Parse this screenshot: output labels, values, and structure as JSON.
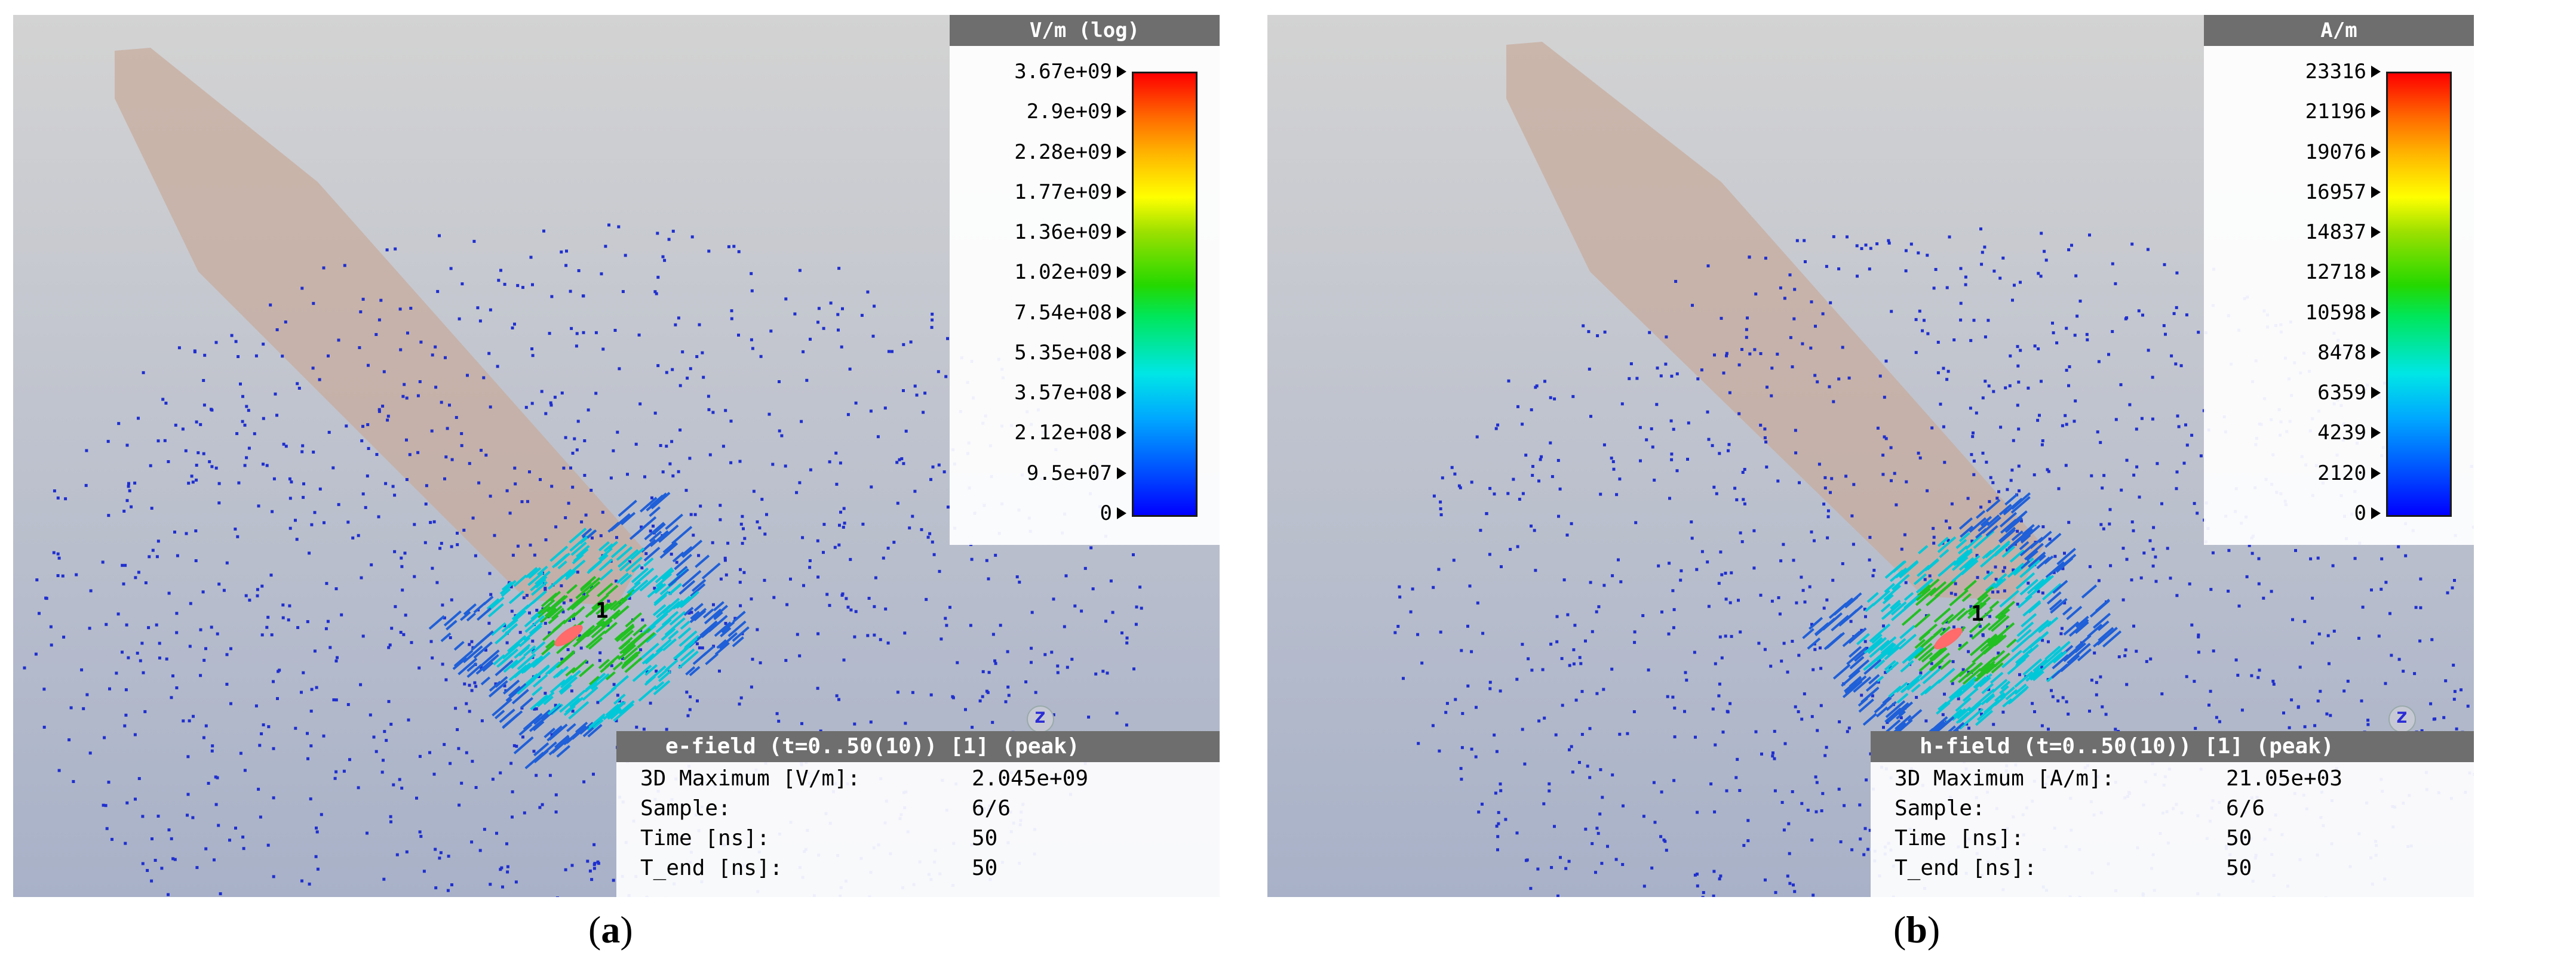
{
  "panels": [
    {
      "id": "a",
      "legend_title": "V/m (log)",
      "ticks": [
        "3.67e+09",
        "2.9e+09",
        "2.28e+09",
        "1.77e+09",
        "1.36e+09",
        "1.02e+09",
        "7.54e+08",
        "5.35e+08",
        "3.57e+08",
        "2.12e+08",
        "9.5e+07",
        "0"
      ],
      "info_header": "e-field (t=0..50(10)) [1] (peak)",
      "info_rows": [
        {
          "label": "3D Maximum [V/m]:",
          "value": "2.045e+09"
        },
        {
          "label": "Sample:",
          "value": "6/6"
        },
        {
          "label": "Time [ns]:",
          "value": "50"
        },
        {
          "label": "T_end [ns]:",
          "value": "50"
        }
      ],
      "axis_label": "z",
      "port_label": "1",
      "caption_letter": "a"
    },
    {
      "id": "b",
      "legend_title": "A/m",
      "ticks": [
        "23316",
        "21196",
        "19076",
        "16957",
        "14837",
        "12718",
        "10598",
        "8478",
        "6359",
        "4239",
        "2120",
        "0"
      ],
      "info_header": "h-field (t=0..50(10)) [1] (peak)",
      "info_rows": [
        {
          "label": "3D Maximum [A/m]:",
          "value": "21.05e+03"
        },
        {
          "label": "Sample:",
          "value": "6/6"
        },
        {
          "label": "Time [ns]:",
          "value": "50"
        },
        {
          "label": "T_end [ns]:",
          "value": "50"
        }
      ],
      "axis_label": "z",
      "port_label": "1",
      "caption_letter": "b"
    }
  ],
  "colors": {
    "background_top": "#d2d2d2",
    "background_bottom": "#a9b2c8",
    "probe_body": "#c8aa9a",
    "field_arrow_low": "#1f2fcf",
    "field_arrow_mid": "#00c8d8",
    "field_arrow_high": "#22c022",
    "legend_header": "#6e6e6e"
  }
}
